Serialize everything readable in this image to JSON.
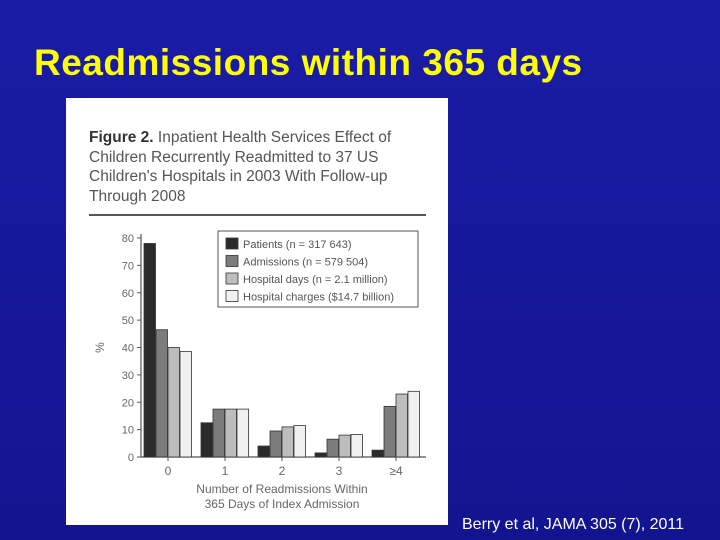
{
  "slide": {
    "title": "Readmissions within 365 days",
    "citation": "Berry et al, JAMA 305 (7), 2011"
  },
  "figure": {
    "number": "Figure 2.",
    "caption": "Inpatient Health Services Effect of Children Recurrently Readmitted to 37 US Children's Hospitals in 2003 With Follow-up Through 2008"
  },
  "colors": {
    "background": "#15179a",
    "title": "#ffff00",
    "series": [
      "#2b2b2b",
      "#7c7c7c",
      "#bdbdbd",
      "#f0f0f0"
    ]
  },
  "chart_data": {
    "type": "bar",
    "title": "",
    "xlabel": "Number of Readmissions Within 365 Days of Index Admission",
    "ylabel": "%",
    "ylim": [
      0,
      80
    ],
    "yticks": [
      0,
      10,
      20,
      30,
      40,
      50,
      60,
      70,
      80
    ],
    "categories": [
      "0",
      "1",
      "2",
      "3",
      "≥4"
    ],
    "legend_position": "top-right",
    "grid": false,
    "series": [
      {
        "name": "Patients (n = 317 643)",
        "values": [
          78,
          12.5,
          4,
          1.5,
          2.5
        ]
      },
      {
        "name": "Admissions (n = 579 504)",
        "values": [
          46.5,
          17.5,
          9.5,
          6.5,
          18.5
        ]
      },
      {
        "name": "Hospital days (n = 2.1 million)",
        "values": [
          40,
          17.5,
          11,
          8,
          23
        ]
      },
      {
        "name": "Hospital charges ($14.7 billion)",
        "values": [
          38.5,
          17.5,
          11.5,
          8.2,
          24
        ]
      }
    ]
  }
}
